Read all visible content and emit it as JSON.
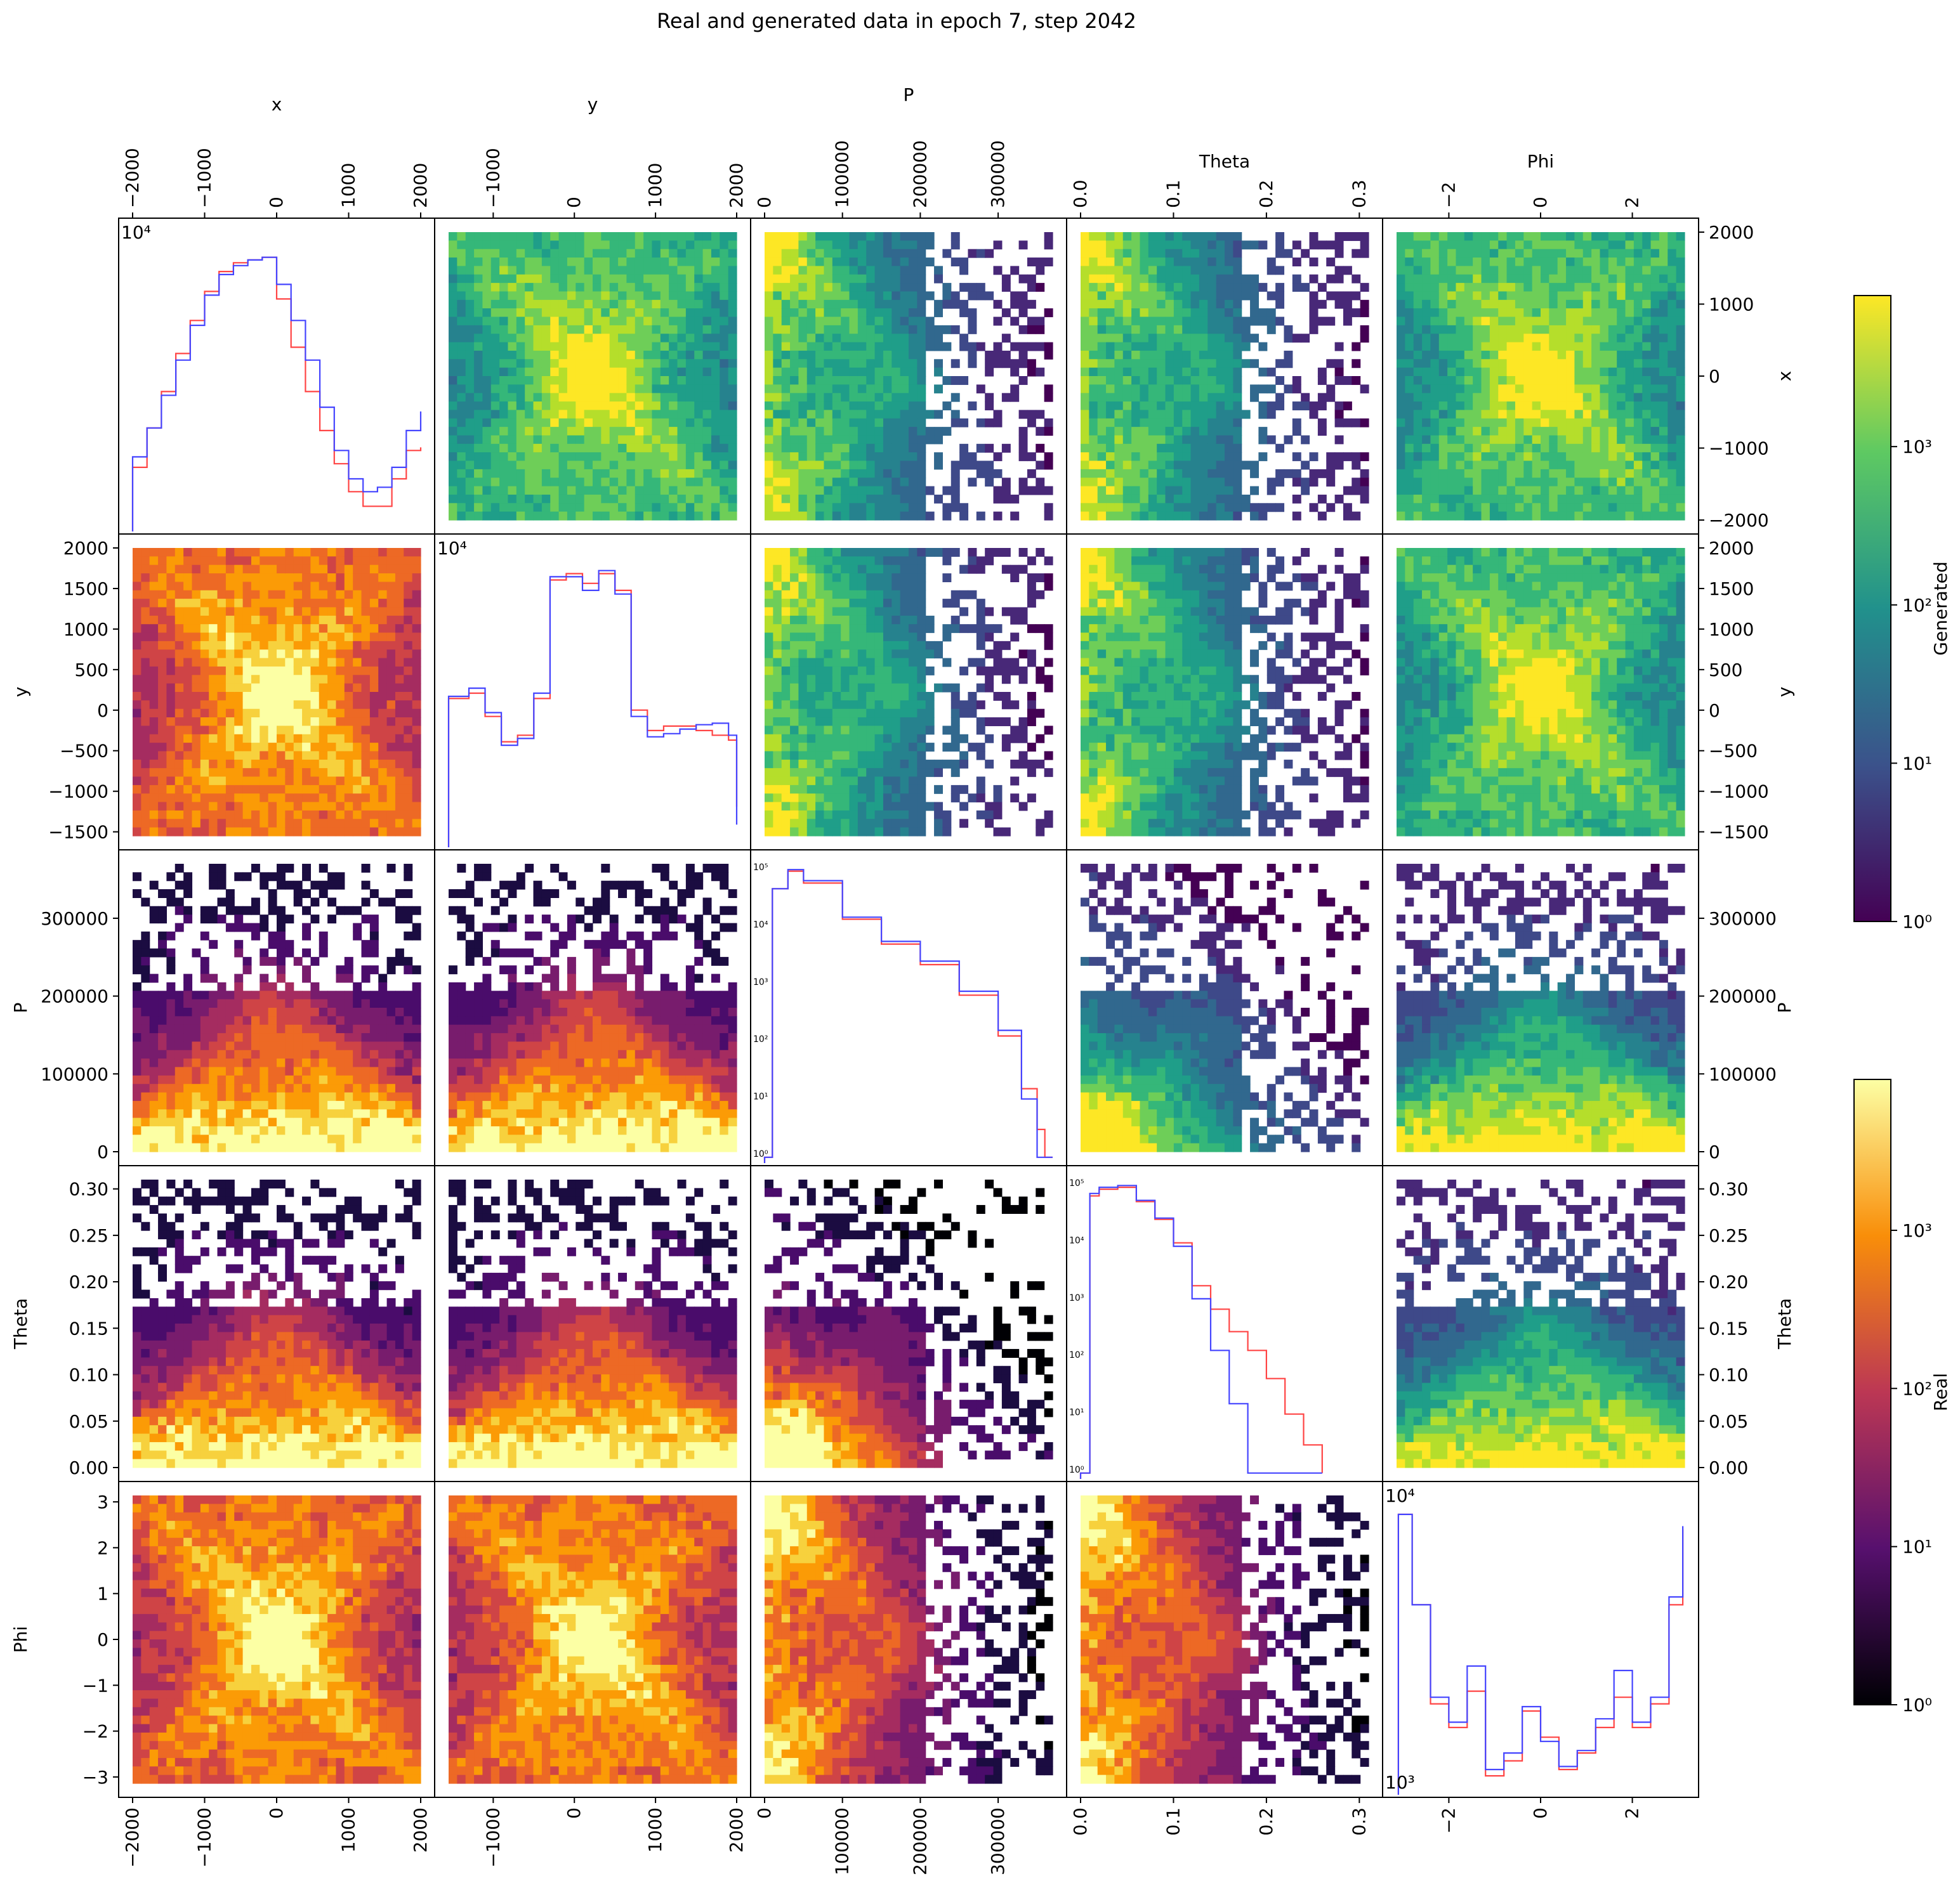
{
  "title": "Real and generated data in epoch 7, step 2042",
  "variables": [
    {
      "name": "x",
      "label": "x",
      "range": [
        -2000,
        2000
      ],
      "ticks": [
        -2000,
        -1000,
        0,
        1000,
        2000
      ],
      "tick_labels": [
        "−2000",
        "−1000",
        "0",
        "1000",
        "2000"
      ]
    },
    {
      "name": "y",
      "label": "y",
      "range": [
        -1550,
        2000
      ],
      "ticks": [
        -1000,
        0,
        1000,
        2000
      ],
      "tick_labels": [
        "−1000",
        "0",
        "1000",
        "2000"
      ],
      "row_ticks": [
        -1500,
        -1000,
        -500,
        0,
        500,
        1000,
        1500,
        2000
      ],
      "row_tick_labels": [
        "−1500",
        "−1000",
        "−500",
        "0",
        "500",
        "1000",
        "1500",
        "2000"
      ]
    },
    {
      "name": "P",
      "label": "P",
      "range": [
        0,
        370000
      ],
      "ticks": [
        0,
        100000,
        200000,
        300000
      ],
      "tick_labels": [
        "0",
        "100000",
        "200000",
        "300000"
      ]
    },
    {
      "name": "Theta",
      "label": "Theta",
      "range": [
        0,
        0.31
      ],
      "ticks": [
        0,
        0.1,
        0.2,
        0.3
      ],
      "tick_labels": [
        "0.0",
        "0.1",
        "0.2",
        "0.3"
      ],
      "row_ticks": [
        0,
        0.05,
        0.1,
        0.15,
        0.2,
        0.25,
        0.3
      ],
      "row_tick_labels": [
        "0.00",
        "0.05",
        "0.10",
        "0.15",
        "0.20",
        "0.25",
        "0.30"
      ]
    },
    {
      "name": "Phi",
      "label": "Phi",
      "range": [
        -3.14,
        3.14
      ],
      "ticks": [
        -2,
        0,
        2
      ],
      "tick_labels": [
        "−2",
        "0",
        "2"
      ],
      "row_ticks": [
        -3,
        -2,
        -1,
        0,
        1,
        2,
        3
      ],
      "row_tick_labels": [
        "−3",
        "−2",
        "−1",
        "0",
        "1",
        "2",
        "3"
      ]
    }
  ],
  "colorbars": [
    {
      "label": "Generated",
      "colormap": "viridis",
      "scale": "log",
      "range": [
        1,
        9000
      ],
      "tick_labels": [
        "10⁰",
        "10¹",
        "10²",
        "10³"
      ],
      "colors": [
        "#440154",
        "#3b528b",
        "#21918c",
        "#5ec962",
        "#fde725"
      ]
    },
    {
      "label": "Real",
      "colormap": "inferno",
      "scale": "log",
      "range": [
        1,
        9000
      ],
      "tick_labels": [
        "10⁰",
        "10¹",
        "10²",
        "10³"
      ],
      "colors": [
        "#000004",
        "#57106e",
        "#bc3754",
        "#f98e09",
        "#fcffa4"
      ]
    }
  ],
  "diagonal_hist_labels": {
    "x": [
      "10⁴"
    ],
    "y": [
      "10⁴"
    ],
    "P": [
      "10⁵",
      "10⁴",
      "10³",
      "10²",
      "10¹",
      "10⁰"
    ],
    "Theta": [
      "10⁵",
      "10⁴",
      "10³",
      "10²",
      "10¹",
      "10⁰"
    ],
    "Phi": [
      "10⁴",
      "10³"
    ]
  },
  "chart_data": {
    "type": "corner-plot",
    "title": "Real and generated data in epoch 7, step 2042",
    "variables": [
      "x",
      "y",
      "P",
      "Theta",
      "Phi"
    ],
    "upper_triangle": "Generated (2D log-density histograms, viridis)",
    "lower_triangle": "Real (2D log-density histograms, inferno)",
    "diagonal": "1D histograms, log scale; Real in red, Generated in blue",
    "series": [
      {
        "name": "Real",
        "color": "#ff4444"
      },
      {
        "name": "Generated",
        "color": "#4444ff"
      }
    ],
    "histograms": {
      "x": {
        "xlim": [
          -2000,
          2000
        ],
        "log": true,
        "x": [
          -2000,
          -1800,
          -1600,
          -1400,
          -1200,
          -1000,
          -800,
          -600,
          -400,
          -200,
          0,
          200,
          400,
          600,
          800,
          1000,
          1200,
          1400,
          1600,
          1800,
          2000
        ],
        "real": [
          3000,
          4300,
          6000,
          8500,
          11500,
          15000,
          18000,
          19500,
          20000,
          20500,
          14000,
          9000,
          6000,
          4200,
          3100,
          2400,
          2100,
          2100,
          2700,
          3500,
          3600
        ],
        "generated": [
          3300,
          4300,
          5800,
          8000,
          11000,
          14500,
          17500,
          19000,
          20000,
          20500,
          16000,
          11500,
          8000,
          5200,
          3500,
          2700,
          2400,
          2500,
          3000,
          4200,
          5000
        ]
      },
      "y": {
        "xlim": [
          -1550,
          2000
        ],
        "log": true,
        "x": [
          -1550,
          -1300,
          -1100,
          -900,
          -700,
          -500,
          -300,
          -100,
          100,
          300,
          500,
          700,
          900,
          1100,
          1300,
          1500,
          1700,
          1900,
          2000
        ],
        "real": [
          9000,
          9500,
          7500,
          5800,
          6200,
          9000,
          30000,
          32000,
          29000,
          32000,
          27000,
          8000,
          6500,
          6800,
          6800,
          6500,
          6200,
          5900,
          3000
        ],
        "generated": [
          9200,
          10000,
          7800,
          5600,
          6000,
          9500,
          31000,
          31000,
          27000,
          33000,
          26000,
          7500,
          6100,
          6300,
          6600,
          6900,
          7000,
          6200,
          2500
        ]
      },
      "P": {
        "xlim": [
          0,
          370000
        ],
        "log": true,
        "x": [
          0,
          10000,
          30000,
          50000,
          100000,
          150000,
          200000,
          250000,
          300000,
          330000,
          350000,
          360000,
          370000
        ],
        "real": [
          1,
          40000,
          80000,
          50000,
          12000,
          4500,
          2000,
          600,
          120,
          15,
          3,
          1,
          1
        ],
        "generated": [
          1,
          40000,
          85000,
          55000,
          13000,
          5000,
          2300,
          700,
          150,
          10,
          1,
          1,
          1
        ]
      },
      "Theta": {
        "xlim": [
          0,
          0.31
        ],
        "log": true,
        "x": [
          0,
          0.01,
          0.02,
          0.04,
          0.06,
          0.08,
          0.1,
          0.12,
          0.14,
          0.16,
          0.18,
          0.2,
          0.22,
          0.24,
          0.26
        ],
        "real": [
          1,
          50000,
          65000,
          70000,
          40000,
          20000,
          8000,
          1500,
          600,
          250,
          120,
          40,
          10,
          3,
          1
        ],
        "generated": [
          1,
          55000,
          70000,
          75000,
          42000,
          21000,
          7000,
          900,
          120,
          15,
          1,
          1,
          1,
          1,
          1
        ]
      },
      "Phi": {
        "xlim": [
          -3.14,
          3.14
        ],
        "log": true,
        "x": [
          -3.1,
          -2.8,
          -2.4,
          -2.0,
          -1.6,
          -1.2,
          -0.8,
          -0.4,
          0,
          0.4,
          0.8,
          1.2,
          1.6,
          2.0,
          2.4,
          2.8,
          3.1
        ],
        "real": [
          60000,
          20000,
          6000,
          4500,
          7000,
          2500,
          3000,
          5500,
          4000,
          2700,
          3300,
          4500,
          6500,
          4500,
          6000,
          20000,
          50000
        ],
        "generated": [
          60000,
          20000,
          6500,
          4800,
          9500,
          2700,
          3300,
          5800,
          3800,
          2800,
          3400,
          5000,
          9000,
          4800,
          6500,
          22000,
          52000
        ]
      }
    }
  }
}
